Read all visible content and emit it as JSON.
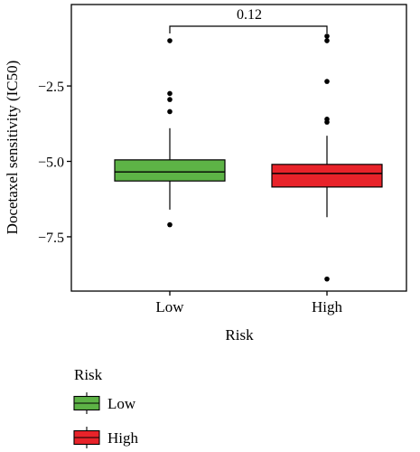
{
  "chart_data": {
    "type": "boxplot",
    "ylabel": "Docetaxel sensitivity (IC50)",
    "xlabel": "Risk",
    "categories": [
      "Low",
      "High"
    ],
    "ylim": [
      -9.3,
      0.2
    ],
    "yticks": [
      -2.5,
      -5.0,
      -7.5
    ],
    "ytick_labels": [
      "−2.5",
      "−5.0",
      "−7.5"
    ],
    "grid": false,
    "boxes": [
      {
        "name": "Low",
        "color": "#5db346",
        "whisker_low": -6.6,
        "q1": -5.65,
        "median": -5.35,
        "q3": -4.95,
        "whisker_high": -3.9,
        "outliers": [
          -1.0,
          -2.75,
          -2.95,
          -3.35,
          -7.1
        ]
      },
      {
        "name": "High",
        "color": "#e8232a",
        "whisker_low": -6.85,
        "q1": -5.85,
        "median": -5.4,
        "q3": -5.1,
        "whisker_high": -4.15,
        "outliers": [
          -0.85,
          -1.0,
          -2.35,
          -3.6,
          -3.7,
          -8.9
        ]
      }
    ],
    "comparison": {
      "label": "0.12",
      "between": [
        "Low",
        "High"
      ]
    },
    "legend": {
      "title": "Risk",
      "position": "bottom-left",
      "items": [
        {
          "label": "Low",
          "color": "#5db346"
        },
        {
          "label": "High",
          "color": "#e8232a"
        }
      ]
    }
  }
}
